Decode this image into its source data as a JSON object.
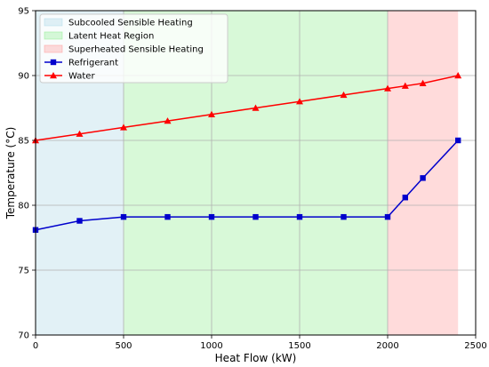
{
  "chart_data": {
    "type": "line",
    "title": "",
    "xlabel": "Heat Flow (kW)",
    "ylabel": "Temperature (°C)",
    "xlim": [
      0,
      2500
    ],
    "ylim": [
      70,
      95
    ],
    "xticks": [
      0,
      500,
      1000,
      1500,
      2000,
      2500
    ],
    "yticks": [
      70,
      75,
      80,
      85,
      90,
      95
    ],
    "grid": true,
    "legend_position": "top-left",
    "regions": [
      {
        "name": "Subcooled Sensible Heating",
        "x_start": 0,
        "x_end": 500,
        "color": "#add8e6"
      },
      {
        "name": "Latent Heat Region",
        "x_start": 500,
        "x_end": 2000,
        "color": "#90ee90"
      },
      {
        "name": "Superheated Sensible Heating",
        "x_start": 2000,
        "x_end": 2400,
        "color": "#ff9999"
      }
    ],
    "series": [
      {
        "name": "Refrigerant",
        "color": "#0000cc",
        "marker": "square",
        "x": [
          0,
          250,
          500,
          750,
          1000,
          1250,
          1500,
          1750,
          2000,
          2100,
          2200,
          2400
        ],
        "y": [
          78.1,
          78.8,
          79.1,
          79.1,
          79.1,
          79.1,
          79.1,
          79.1,
          79.1,
          80.6,
          82.1,
          85.0
        ]
      },
      {
        "name": "Water",
        "color": "#ff0000",
        "marker": "triangle",
        "x": [
          0,
          250,
          500,
          750,
          1000,
          1250,
          1500,
          1750,
          2000,
          2100,
          2200,
          2400
        ],
        "y": [
          85.0,
          85.5,
          86.0,
          86.5,
          87.0,
          87.5,
          88.0,
          88.5,
          89.0,
          89.2,
          89.4,
          90.0
        ]
      }
    ]
  }
}
